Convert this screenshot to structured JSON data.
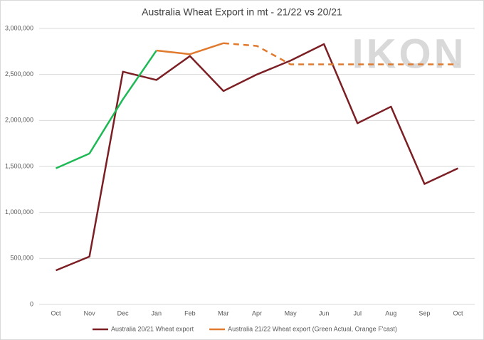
{
  "chart_data": {
    "type": "line",
    "title": "Australia Wheat Export in mt - 21/22 vs 20/21",
    "watermark": "IKON",
    "categories": [
      "Oct",
      "Nov",
      "Dec",
      "Jan",
      "Feb",
      "Mar",
      "Apr",
      "May",
      "Jun",
      "Jul",
      "Aug",
      "Sep",
      "Oct"
    ],
    "series": [
      {
        "name": "Australia 20/21 Wheat export",
        "color": "#7b1f24",
        "values": [
          370000,
          520000,
          2530000,
          2440000,
          2700000,
          2320000,
          2500000,
          2650000,
          2830000,
          1970000,
          2150000,
          1310000,
          1480000
        ]
      },
      {
        "name": "Australia 21/22 Wheat export (Green Actual, Orange F'cast)",
        "color": "#e07a2e",
        "values": [
          1480000,
          1640000,
          2230000,
          2760000,
          2720000,
          2840000,
          2810000,
          2610000,
          2610000,
          2610000,
          2610000,
          2610000,
          2610000
        ],
        "segments": [
          {
            "from": 0,
            "to": 3,
            "color": "#1db954",
            "dashed": false
          },
          {
            "from": 3,
            "to": 5,
            "color": "#e07a2e",
            "dashed": false
          },
          {
            "from": 5,
            "to": 12,
            "color": "#e07a2e",
            "dashed": true
          }
        ]
      }
    ],
    "ylim": [
      0,
      3000000
    ],
    "yticks": [
      0,
      {
        "value": 500000,
        "label": "500,000"
      },
      {
        "value": 1000000,
        "label": "1,000,000"
      },
      {
        "value": 1500000,
        "label": "1,500,000"
      },
      {
        "value": 2000000,
        "label": "2,000,000"
      },
      {
        "value": 2500000,
        "label": "2,500,000"
      },
      {
        "value": 3000000,
        "label": "3,000,000"
      }
    ],
    "grid": true,
    "legend": "bottom"
  }
}
